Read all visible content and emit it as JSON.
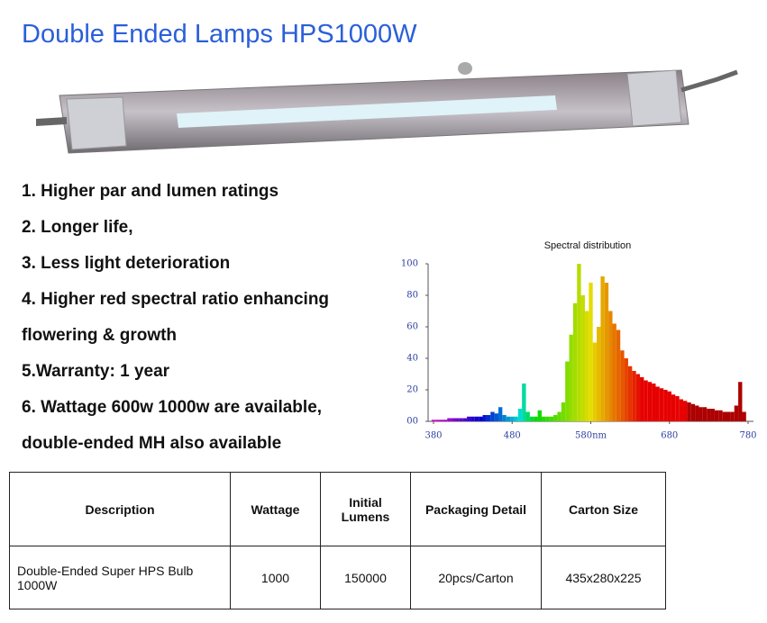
{
  "title": "Double Ended Lamps HPS1000W",
  "features": [
    "1. Higher par and lumen ratings",
    "2. Longer life,",
    "3. Less light deterioration",
    "4. Higher red spectral ratio enhancing",
    "flowering & growth",
    "5.Warranty: 1 year",
    "6. Wattage 600w 1000w are available,",
    "double-ended MH also available"
  ],
  "chart_data": {
    "type": "bar",
    "title": "Spectral distribution",
    "x": [
      380,
      385,
      390,
      395,
      400,
      405,
      410,
      415,
      420,
      425,
      430,
      435,
      440,
      445,
      450,
      455,
      460,
      465,
      470,
      475,
      480,
      485,
      490,
      495,
      500,
      505,
      510,
      515,
      520,
      525,
      530,
      535,
      540,
      545,
      550,
      555,
      560,
      565,
      570,
      575,
      580,
      585,
      590,
      595,
      600,
      605,
      610,
      615,
      620,
      625,
      630,
      635,
      640,
      645,
      650,
      655,
      660,
      665,
      670,
      675,
      680,
      685,
      690,
      695,
      700,
      705,
      710,
      715,
      720,
      725,
      730,
      735,
      740,
      745,
      750,
      755,
      760,
      765,
      770,
      775,
      780
    ],
    "values": [
      1,
      1,
      1,
      1,
      2,
      2,
      2,
      2,
      2,
      3,
      3,
      3,
      3,
      4,
      4,
      6,
      5,
      9,
      4,
      3,
      3,
      3,
      8,
      24,
      6,
      3,
      3,
      7,
      3,
      3,
      3,
      4,
      6,
      12,
      38,
      55,
      75,
      100,
      80,
      70,
      88,
      50,
      60,
      92,
      88,
      70,
      62,
      58,
      45,
      40,
      35,
      32,
      30,
      28,
      26,
      25,
      24,
      22,
      21,
      20,
      19,
      17,
      16,
      14,
      13,
      12,
      11,
      10,
      9,
      9,
      8,
      8,
      7,
      7,
      6,
      6,
      6,
      10,
      25,
      6,
      0
    ],
    "xlim": [
      380,
      780
    ],
    "ylim": [
      0,
      100
    ],
    "xticks": [
      380,
      480,
      {
        "value": 580,
        "label": "580nm"
      },
      680,
      780
    ],
    "yticks": [
      {
        "value": 0,
        "label": "00"
      },
      20,
      40,
      60,
      80,
      100
    ]
  },
  "table": {
    "header": [
      "Description",
      "Wattage",
      "Initial Lumens",
      "Packaging Detail",
      "Carton Size"
    ],
    "rows": [
      [
        "Double-Ended Super HPS Bulb 1000W",
        "1000",
        "150000",
        "20pcs/Carton",
        "435x280x225"
      ]
    ]
  }
}
